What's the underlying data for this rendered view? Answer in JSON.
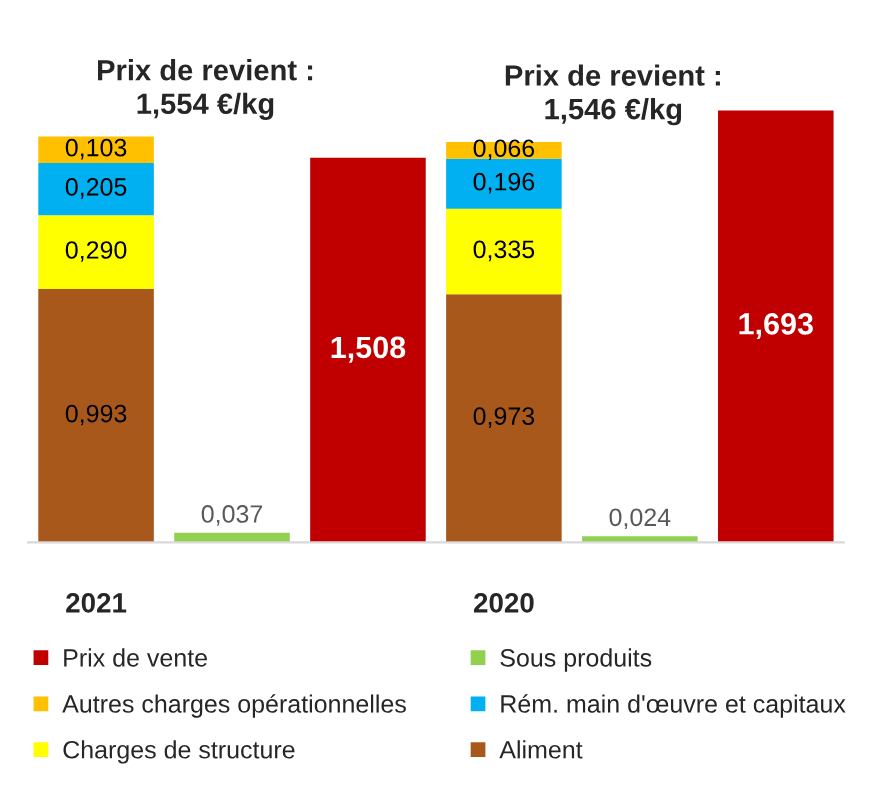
{
  "chart_data": {
    "type": "bar",
    "stacked": true,
    "categories": [
      "2021",
      null,
      null,
      "2020",
      null,
      null
    ],
    "series": [
      {
        "name": "Aliment",
        "color": "#a9581b",
        "values": [
          0.993,
          null,
          null,
          0.973,
          null,
          null
        ],
        "value_labels": [
          "0,993",
          null,
          null,
          "0,973",
          null,
          null
        ]
      },
      {
        "name": "Charges de structure",
        "color": "#ffff00",
        "values": [
          0.29,
          null,
          null,
          0.335,
          null,
          null
        ],
        "value_labels": [
          "0,290",
          null,
          null,
          "0,335",
          null,
          null
        ]
      },
      {
        "name": "Rém. main d'œuvre et capitaux",
        "color": "#00b0f0",
        "values": [
          0.205,
          null,
          null,
          0.196,
          null,
          null
        ],
        "value_labels": [
          "0,205",
          null,
          null,
          "0,196",
          null,
          null
        ]
      },
      {
        "name": "Autres charges opérationnelles",
        "color": "#ffc000",
        "values": [
          0.103,
          null,
          null,
          0.066,
          null,
          null
        ],
        "value_labels": [
          "0,103",
          null,
          null,
          "0,066",
          null,
          null
        ]
      },
      {
        "name": "Sous produits",
        "color": "#92d050",
        "values": [
          null,
          0.037,
          null,
          null,
          0.024,
          null
        ],
        "value_labels": [
          null,
          "0,037",
          null,
          null,
          "0,024",
          null
        ]
      },
      {
        "name": "Prix de vente",
        "color": "#c00000",
        "values": [
          null,
          null,
          1.508,
          null,
          null,
          1.693
        ],
        "value_labels": [
          null,
          null,
          "1,508",
          null,
          null,
          "1,693"
        ]
      }
    ],
    "annotations": [
      {
        "text": "Prix de revient :\n1,554 €/kg",
        "x": "2021",
        "y": 1.591
      },
      {
        "text": "Prix de revient :\n1,546 €/kg",
        "x": "2020",
        "y": 1.57
      }
    ],
    "tick_labels": "x",
    "grid": false,
    "legend": "bottom"
  }
}
